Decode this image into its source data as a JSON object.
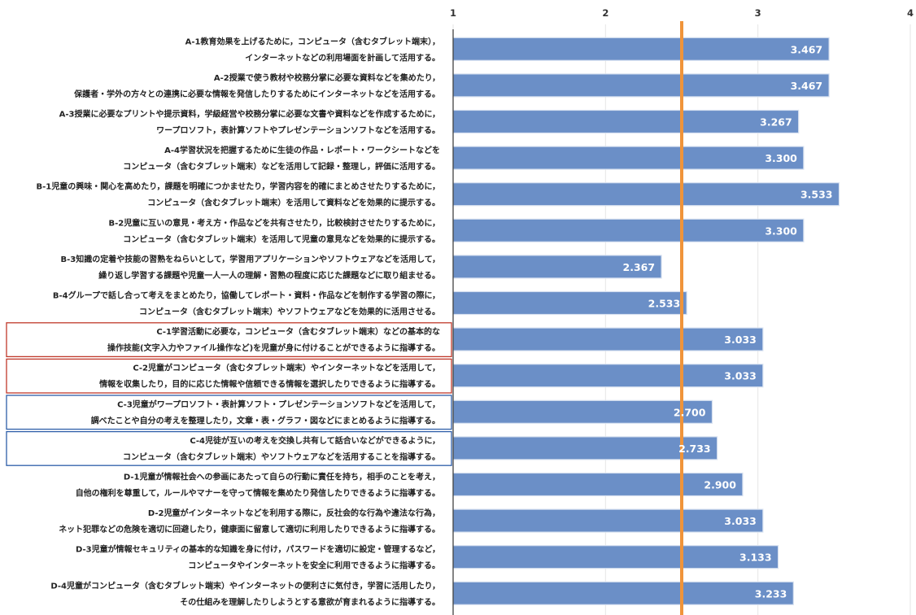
{
  "chart_data": {
    "type": "bar",
    "orientation": "horizontal",
    "xlim": [
      1,
      4
    ],
    "x_ticks": [
      1,
      2,
      3,
      4
    ],
    "reference_line": 2.5,
    "bar_color": "#6b8fc7",
    "reference_line_color": "#f0943a",
    "highlight_colors": {
      "red": "#c0392b",
      "blue": "#2e5ea8"
    },
    "categories": [
      {
        "line1": "A-1教育効果を上げるために，コンピュータ（含むタブレット端末），",
        "line2": "インターネットなどの利用場面を計画して活用する。",
        "value": 3.467,
        "label": "3.467",
        "highlight": ""
      },
      {
        "line1": "A-2授業で使う教材や校務分掌に必要な資料などを集めたり，",
        "line2": "保護者・学外の方々との連携に必要な情報を発信したりするためにインターネットなどを活用する。",
        "value": 3.467,
        "label": "3.467",
        "highlight": ""
      },
      {
        "line1": "A-3授業に必要なプリントや提示資料，学級経営や校務分掌に必要な文書や資料などを作成するために，",
        "line2": "ワープロソフト，表計算ソフトやプレゼンテーションソフトなどを活用する。",
        "value": 3.267,
        "label": "3.267",
        "highlight": ""
      },
      {
        "line1": "A-4学習状況を把握するために生徒の作品・レポート・ワークシートなどを",
        "line2": "コンピュータ（含むタブレット端末）などを活用して記録・整理し，評価に活用する。",
        "value": 3.3,
        "label": "3.300",
        "highlight": ""
      },
      {
        "line1": "B-1児童の興味・関心を高めたり，課題を明確につかませたり，学習内容を的確にまとめさせたりするために，",
        "line2": "コンピュータ（含むタブレット端末）を活用して資料などを効果的に提示する。",
        "value": 3.533,
        "label": "3.533",
        "highlight": ""
      },
      {
        "line1": "B-2児童に互いの意見・考え方・作品などを共有させたり，比較検討させたりするために，",
        "line2": "コンピュータ（含むタブレット端末）を活用して児童の意見などを効果的に提示する。",
        "value": 3.3,
        "label": "3.300",
        "highlight": ""
      },
      {
        "line1": "B-3知識の定着や技能の習熟をねらいとして，学習用アプリケーションやソフトウェアなどを活用して，",
        "line2": "繰り返し学習する課題や児童一人一人の理解・習熟の程度に応じた課題などに取り組ませる。",
        "value": 2.367,
        "label": "2.367",
        "highlight": ""
      },
      {
        "line1": "B-4グループで話し合って考えをまとめたり，協働してレポート・資料・作品などを制作する学習の際に，",
        "line2": "コンピュータ（含むタブレット端末）やソフトウェアなどを効果的に活用させる。",
        "value": 2.533,
        "label": "2.533",
        "highlight": ""
      },
      {
        "line1": "C-1学習活動に必要な，コンピュータ（含むタブレット端末）などの基本的な",
        "line2": "操作技能(文字入力やファイル操作など)を児童が身に付けることができるように指導する。",
        "value": 3.033,
        "label": "3.033",
        "highlight": "red"
      },
      {
        "line1": "C-2児童がコンピュータ（含むタブレット端末）やインターネットなどを活用して，",
        "line2": "情報を収集したり，目的に応じた情報や信頼できる情報を選択したりできるように指導する。",
        "value": 3.033,
        "label": "3.033",
        "highlight": "red"
      },
      {
        "line1": "C-3児童がワープロソフト・表計算ソフト・プレゼンテーションソフトなどを活用して，",
        "line2": "調べたことや自分の考えを整理したり，文章・表・グラフ・図などにまとめるように指導する。",
        "value": 2.7,
        "label": "2.700",
        "highlight": "blue"
      },
      {
        "line1": "C-4児徒が互いの考えを交換し共有して話合いなどができるように，",
        "line2": "コンピュータ（含むタブレット端末）やソフトウェアなどを活用することを指導する。",
        "value": 2.733,
        "label": "2.733",
        "highlight": "blue"
      },
      {
        "line1": "D-1児童が情報社会への参画にあたって自らの行動に責任を持ち，相手のことを考え，",
        "line2": "自他の権利を尊重して，ルールやマナーを守って情報を集めたり発信したりできるように指導する。",
        "value": 2.9,
        "label": "2.900",
        "highlight": ""
      },
      {
        "line1": "D-2児童がインターネットなどを利用する際に，反社会的な行為や違法な行為，",
        "line2": "ネット犯罪などの危険を適切に回避したり，健康面に留意して適切に利用したりできるように指導する。",
        "value": 3.033,
        "label": "3.033",
        "highlight": ""
      },
      {
        "line1": "D-3児童が情報セキュリティの基本的な知識を身に付け，パスワードを適切に設定・管理するなど，",
        "line2": "コンピュータやインターネットを安全に利用できるように指導する。",
        "value": 3.133,
        "label": "3.133",
        "highlight": ""
      },
      {
        "line1": "D-4児童がコンピュータ（含むタブレット端末）やインターネットの便利さに気付き，学習に活用したり，",
        "line2": "その仕組みを理解したりしようとする意欲が育まれるように指導する。",
        "value": 3.233,
        "label": "3.233",
        "highlight": ""
      }
    ]
  }
}
